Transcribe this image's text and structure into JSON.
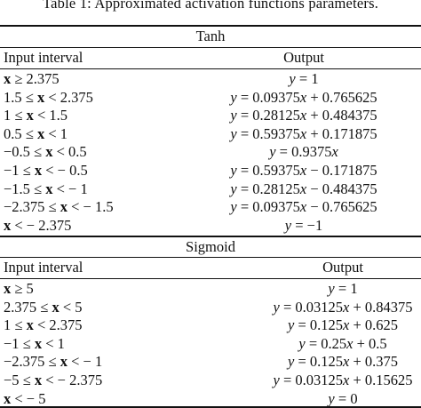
{
  "caption": "Table 1: Approximated activation functions parameters.",
  "tanh": {
    "title": "Tanh",
    "col_input": "Input interval",
    "col_output": "Output",
    "rows": [
      {
        "input": "<b>x</b> ≥ 2.375",
        "output": "<i>y</i> = 1"
      },
      {
        "input": "1.5 ≤ <b>x</b> &lt; 2.375",
        "output": "<i>y</i> = 0.09375<i>x</i> + 0.765625"
      },
      {
        "input": "1 ≤ <b>x</b> &lt; 1.5",
        "output": "<i>y</i> = 0.28125<i>x</i> + 0.484375"
      },
      {
        "input": "0.5 ≤ <b>x</b> &lt; 1",
        "output": "<i>y</i> = 0.59375<i>x</i> + 0.171875"
      },
      {
        "input": "−0.5 ≤ <b>x</b> &lt; 0.5",
        "output": "<i>y</i> = 0.9375<i>x</i>"
      },
      {
        "input": "−1 ≤ <b>x</b> &lt; − 0.5",
        "output": "<i>y</i> = 0.59375<i>x</i> − 0.171875"
      },
      {
        "input": "−1.5 ≤ <b>x</b> &lt; − 1",
        "output": "<i>y</i> = 0.28125<i>x</i> − 0.484375"
      },
      {
        "input": "−2.375 ≤ <b>x</b> &lt; − 1.5",
        "output": "<i>y</i> = 0.09375<i>x</i> − 0.765625"
      },
      {
        "input": "<b>x</b> &lt; − 2.375",
        "output": "<i>y</i> = −1"
      }
    ]
  },
  "sigmoid": {
    "title": "Sigmoid",
    "col_input": "Input interval",
    "col_output": "Output",
    "rows": [
      {
        "input": "<b>x</b> ≥ 5",
        "output": "<i>y</i> = 1"
      },
      {
        "input": "2.375 ≤ <b>x</b> &lt; 5",
        "output": "<i>y</i> = 0.03125<i>x</i> + 0.84375"
      },
      {
        "input": "1 ≤ <b>x</b> &lt; 2.375",
        "output": "<i>y</i> = 0.125<i>x</i> + 0.625"
      },
      {
        "input": "−1 ≤ <b>x</b> &lt; 1",
        "output": "<i>y</i> = 0.25<i>x</i> + 0.5"
      },
      {
        "input": "−2.375 ≤ <b>x</b> &lt; − 1",
        "output": "<i>y</i> = 0.125<i>x</i> + 0.375"
      },
      {
        "input": "−5 ≤ <b>x</b> &lt; − 2.375",
        "output": "<i>y</i> = 0.03125<i>x</i> + 0.15625"
      },
      {
        "input": "<b>x</b> &lt; − 5",
        "output": "<i>y</i> = 0"
      }
    ]
  }
}
